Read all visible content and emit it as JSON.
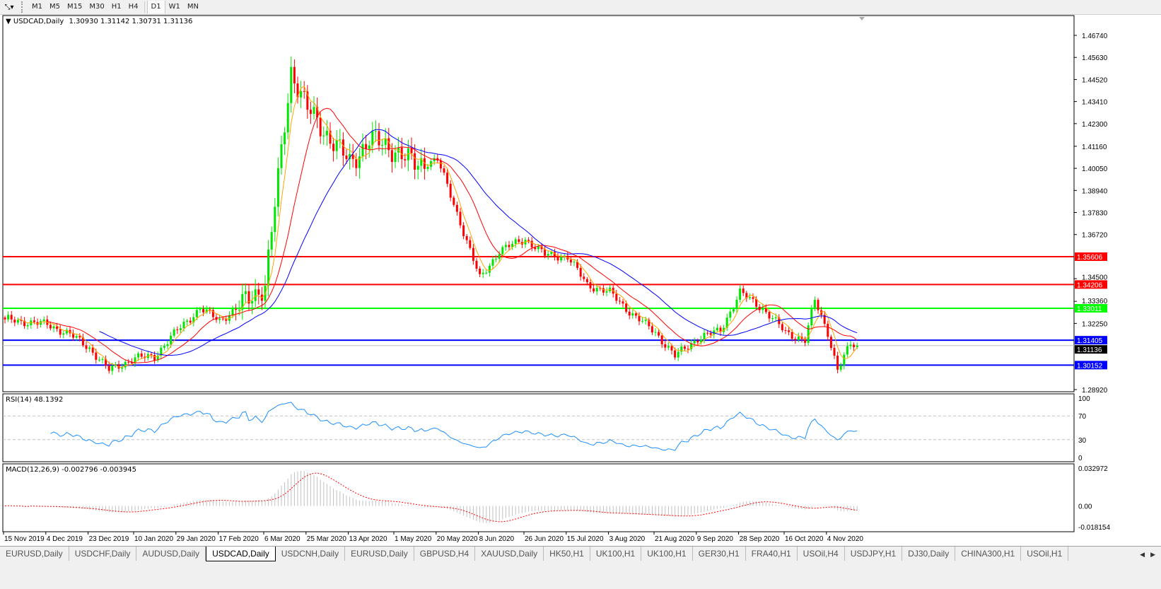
{
  "toolbar": {
    "timeframes": [
      "M1",
      "M5",
      "M15",
      "M30",
      "H1",
      "H4",
      "D1",
      "W1",
      "MN"
    ],
    "active_timeframe": "D1"
  },
  "chart_header": {
    "symbol": "USDCAD,Daily",
    "ohlc": "1.30930 1.31142 1.30731 1.31136"
  },
  "rsi_label": "RSI(14) 48.1392",
  "macd_label": "MACD(12,26,9) -0.002796 -0.003945",
  "tabs": [
    "EURUSD,Daily",
    "USDCHF,Daily",
    "AUDUSD,Daily",
    "USDCAD,Daily",
    "USDCNH,Daily",
    "EURUSD,Daily",
    "GBPUSD,H4",
    "XAUUSD,Daily",
    "HK50,H1",
    "UK100,H1",
    "UK100,H1",
    "GER30,H1",
    "FRA40,H1",
    "USOil,H4",
    "USDJPY,H1",
    "DJ30,Daily",
    "CHINA300,H1",
    "USOil,H1"
  ],
  "active_tab": "USDCAD,Daily",
  "chart_data": {
    "type": "candlestick",
    "symbol": "USDCAD",
    "timeframe": "Daily",
    "ylim": [
      1.2892,
      1.4674
    ],
    "y_ticks": [
      "1.46740",
      "1.45630",
      "1.44520",
      "1.43410",
      "1.42300",
      "1.41160",
      "1.40050",
      "1.38940",
      "1.37830",
      "1.36720",
      "1.34500",
      "1.33360",
      "1.32250",
      "1.28920"
    ],
    "x_ticks": [
      {
        "label": "15 Nov 2019",
        "date": "2019-11-15"
      },
      {
        "label": "4 Dec 2019",
        "date": "2019-12-04"
      },
      {
        "label": "23 Dec 2019",
        "date": "2019-12-23"
      },
      {
        "label": "10 Jan 2020",
        "date": "2020-01-10"
      },
      {
        "label": "29 Jan 2020",
        "date": "2020-01-29"
      },
      {
        "label": "17 Feb 2020",
        "date": "2020-02-17"
      },
      {
        "label": "6 Mar 2020",
        "date": "2020-03-06"
      },
      {
        "label": "25 Mar 2020",
        "date": "2020-03-25"
      },
      {
        "label": "13 Apr 2020",
        "date": "2020-04-13"
      },
      {
        "label": "1 May 2020",
        "date": "2020-05-01"
      },
      {
        "label": "20 May 2020",
        "date": "2020-05-20"
      },
      {
        "label": "8 Jun 2020",
        "date": "2020-06-08"
      },
      {
        "label": "26 Jun 2020",
        "date": "2020-06-26"
      },
      {
        "label": "15 Jul 2020",
        "date": "2020-07-15"
      },
      {
        "label": "3 Aug 2020",
        "date": "2020-08-03"
      },
      {
        "label": "21 Aug 2020",
        "date": "2020-08-21"
      },
      {
        "label": "9 Sep 2020",
        "date": "2020-09-09"
      },
      {
        "label": "28 Sep 2020",
        "date": "2020-09-28"
      },
      {
        "label": "16 Oct 2020",
        "date": "2020-10-16"
      },
      {
        "label": "4 Nov 2020",
        "date": "2020-11-04"
      }
    ],
    "approx_closes": [
      [
        "2019-11-15",
        1.3245
      ],
      [
        "2019-12-04",
        1.322
      ],
      [
        "2019-12-13",
        1.317
      ],
      [
        "2019-12-23",
        1.31
      ],
      [
        "2019-12-31",
        1.299
      ],
      [
        "2020-01-10",
        1.305
      ],
      [
        "2020-01-20",
        1.306
      ],
      [
        "2020-01-29",
        1.319
      ],
      [
        "2020-02-07",
        1.33
      ],
      [
        "2020-02-17",
        1.324
      ],
      [
        "2020-02-26",
        1.332
      ],
      [
        "2020-03-06",
        1.342
      ],
      [
        "2020-03-12",
        1.395
      ],
      [
        "2020-03-18",
        1.45
      ],
      [
        "2020-03-25",
        1.43
      ],
      [
        "2020-04-02",
        1.418
      ],
      [
        "2020-04-13",
        1.403
      ],
      [
        "2020-04-21",
        1.415
      ],
      [
        "2020-05-01",
        1.41
      ],
      [
        "2020-05-11",
        1.402
      ],
      [
        "2020-05-20",
        1.405
      ],
      [
        "2020-05-28",
        1.378
      ],
      [
        "2020-06-08",
        1.345
      ],
      [
        "2020-06-16",
        1.359
      ],
      [
        "2020-06-26",
        1.365
      ],
      [
        "2020-07-06",
        1.357
      ],
      [
        "2020-07-15",
        1.356
      ],
      [
        "2020-07-23",
        1.342
      ],
      [
        "2020-08-03",
        1.338
      ],
      [
        "2020-08-12",
        1.327
      ],
      [
        "2020-08-21",
        1.318
      ],
      [
        "2020-08-31",
        1.306
      ],
      [
        "2020-09-09",
        1.315
      ],
      [
        "2020-09-18",
        1.319
      ],
      [
        "2020-09-28",
        1.338
      ],
      [
        "2020-10-07",
        1.33
      ],
      [
        "2020-10-16",
        1.318
      ],
      [
        "2020-10-26",
        1.314
      ],
      [
        "2020-10-29",
        1.334
      ],
      [
        "2020-11-04",
        1.318
      ],
      [
        "2020-11-09",
        1.299
      ],
      [
        "2020-11-13",
        1.312
      ],
      [
        "2020-11-17",
        1.31136
      ]
    ],
    "horizontal_lines": [
      {
        "price": "1.35606",
        "color": "#ff0000"
      },
      {
        "price": "1.34206",
        "color": "#ff0000"
      },
      {
        "price": "1.33011",
        "color": "#00ff00"
      },
      {
        "price": "1.31405",
        "color": "#0000ff"
      },
      {
        "price": "1.30152",
        "color": "#0000ff"
      }
    ],
    "current_price": "1.31136",
    "colors": {
      "bull": "#00e600",
      "bear": "#ff0000",
      "ma_fast": "#ffa500",
      "ma_mid": "#ff0000",
      "ma_slow": "#0000ff",
      "rsi": "#1e90ff",
      "macd_hist": "#c0c0c0",
      "macd_signal": "#ff0000"
    },
    "rsi": {
      "value": "48.1392",
      "levels": [
        "70",
        "30"
      ],
      "axis": [
        "100",
        "70",
        "30",
        "0"
      ]
    },
    "macd": {
      "main": "-0.002796",
      "signal": "-0.003945",
      "axis": [
        "0.032972",
        "0.00",
        "-0.018154"
      ]
    }
  }
}
